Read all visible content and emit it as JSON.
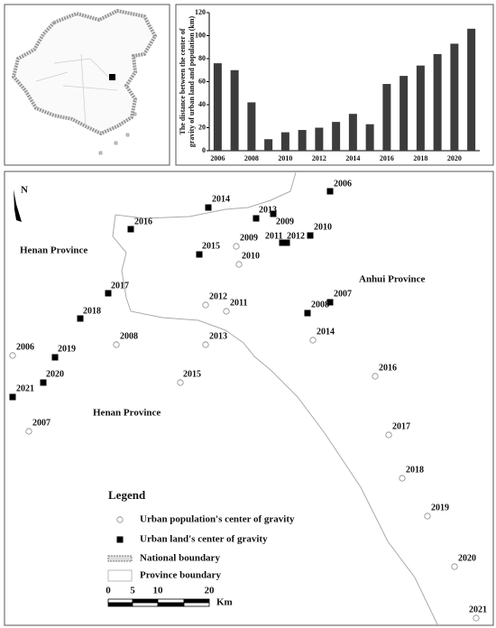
{
  "chart_data": {
    "type": "bar",
    "ylabel": [
      "The distance between the center of",
      "gravity of urban land and population (km)"
    ],
    "categories": [
      "2006",
      null,
      "2008",
      null,
      "2010",
      null,
      "2012",
      null,
      "2014",
      null,
      "2016",
      null,
      "2018",
      null,
      "2020",
      null
    ],
    "values": [
      76,
      70,
      42,
      10,
      16,
      18,
      20,
      25,
      32,
      23,
      58,
      65,
      74,
      84,
      93,
      106
    ],
    "color": "#3c3c3c",
    "ylim": [
      0,
      120
    ],
    "yticks": [
      0,
      20,
      40,
      60,
      80,
      100,
      120
    ],
    "grid": false
  },
  "map": {
    "north": "N",
    "regions": [
      "Henan Province",
      "Henan Province",
      "Anhui Province"
    ],
    "land_points": [
      "2006",
      "2014",
      "2016",
      "2013",
      "2009",
      "2010",
      "2011",
      "2012",
      "2015",
      "2017",
      "2018",
      "2008",
      "2007",
      "2019",
      "2020",
      "2021"
    ],
    "population_points": [
      "2009",
      "2010",
      "2012",
      "2011",
      "2008",
      "2013",
      "2014",
      "2006",
      "2015",
      "2016",
      "2007",
      "2017",
      "2018",
      "2019",
      "2020",
      "2021"
    ],
    "legend": {
      "title": "Legend",
      "items": [
        "Urban population's center of gravity",
        "Urban land's center of gravity",
        "National boundary",
        "Province boundary"
      ]
    },
    "scale": {
      "labels": [
        "0",
        "5",
        "10",
        "20"
      ],
      "unit": "Km"
    }
  }
}
